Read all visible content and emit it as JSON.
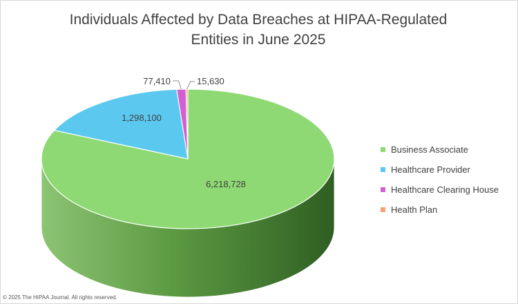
{
  "chart_data": {
    "type": "pie",
    "title": [
      "Individuals Affected by Data Breaches at HIPAA-Regulated",
      "Entities in June 2025"
    ],
    "categories": [
      "Business Associate",
      "Healthcare Provider",
      "Healthcare Clearing House",
      "Health Plan"
    ],
    "values": [
      6218728,
      1298100,
      77410,
      15630
    ],
    "value_labels": [
      "6,218,728",
      "1,298,100",
      "77,410",
      "15,630"
    ],
    "colors": [
      "#8ed973",
      "#5bc8f0",
      "#d35fd3",
      "#f4a27a"
    ],
    "legend_position": "right",
    "style": "3d"
  },
  "footer": "© 2025 The HIPAA Journal. All rights reserved."
}
